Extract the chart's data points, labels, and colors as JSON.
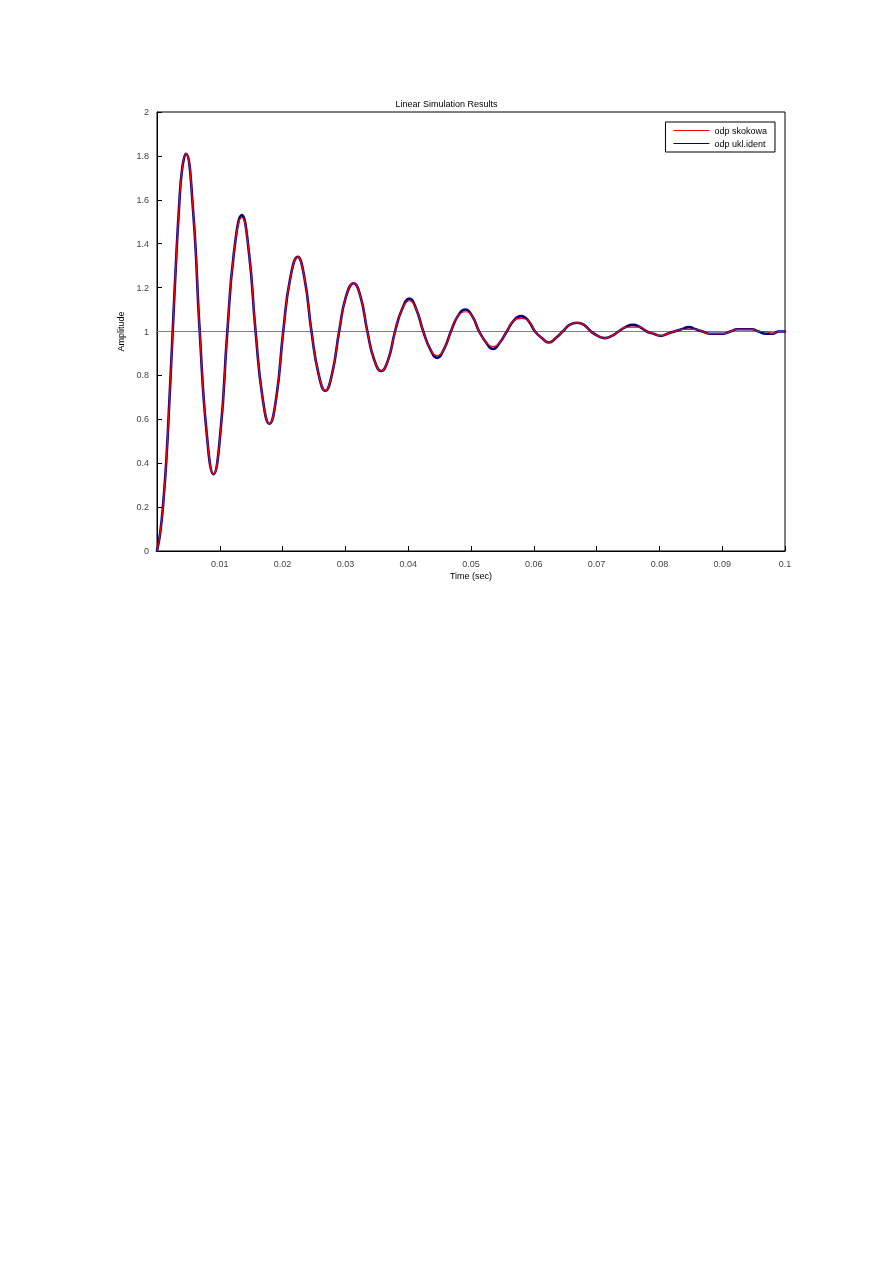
{
  "chart_data": {
    "type": "line",
    "title": "Linear Simulation Results",
    "xlabel": "Time (sec)",
    "ylabel": "Amplitude",
    "x": [
      0,
      0.0005,
      0.001,
      0.0015,
      0.002,
      0.0025,
      0.003,
      0.0035,
      0.004,
      0.0046,
      0.0057,
      0.0068,
      0.0079,
      0.009,
      0.0101,
      0.0112,
      0.0123,
      0.0135,
      0.0146,
      0.0157,
      0.0168,
      0.0179,
      0.019,
      0.0201,
      0.0212,
      0.0224,
      0.0235,
      0.0246,
      0.0257,
      0.0268,
      0.0279,
      0.029,
      0.0301,
      0.0313,
      0.0324,
      0.0335,
      0.0346,
      0.0357,
      0.0368,
      0.0379,
      0.039,
      0.0402,
      0.0413,
      0.0424,
      0.0435,
      0.0446,
      0.0457,
      0.0468,
      0.0479,
      0.0491,
      0.0502,
      0.0513,
      0.0524,
      0.0535,
      0.0546,
      0.0557,
      0.0568,
      0.058,
      0.0591,
      0.0602,
      0.0613,
      0.0624,
      0.0635,
      0.0646,
      0.0657,
      0.0669,
      0.068,
      0.0691,
      0.0702,
      0.0713,
      0.0724,
      0.0735,
      0.0746,
      0.0758,
      0.0769,
      0.078,
      0.0791,
      0.0802,
      0.0813,
      0.0824,
      0.0835,
      0.0847,
      0.0858,
      0.0869,
      0.088,
      0.0891,
      0.0902,
      0.0913,
      0.0924,
      0.0936,
      0.0947,
      0.0958,
      0.0969,
      0.098,
      0.099,
      0.1
    ],
    "series": [
      {
        "name": "odp skokowa",
        "color": "#ff0000",
        "values": [
          0,
          0.08,
          0.22,
          0.42,
          0.7,
          1.0,
          1.3,
          1.56,
          1.74,
          1.81,
          1.57,
          1.0,
          0.54,
          0.35,
          0.54,
          1.0,
          1.37,
          1.52,
          1.37,
          1.0,
          0.7,
          0.58,
          0.7,
          1.0,
          1.24,
          1.34,
          1.24,
          1.0,
          0.81,
          0.73,
          0.81,
          1.0,
          1.16,
          1.22,
          1.16,
          1.0,
          0.87,
          0.82,
          0.87,
          1.0,
          1.1,
          1.14,
          1.1,
          1.0,
          0.92,
          0.89,
          0.92,
          1.0,
          1.07,
          1.09,
          1.07,
          1.0,
          0.95,
          0.93,
          0.95,
          1.0,
          1.05,
          1.06,
          1.05,
          1.0,
          0.97,
          0.95,
          0.97,
          1.0,
          1.03,
          1.04,
          1.03,
          1.0,
          0.98,
          0.97,
          0.98,
          1.0,
          1.02,
          1.02,
          1.02,
          1.0,
          0.99,
          0.98,
          0.99,
          1.0,
          1.01,
          1.01,
          1.01,
          1.0,
          0.99,
          0.99,
          0.99,
          1.0,
          1.01,
          1.01,
          1.01,
          1.0,
          1.0,
          0.99,
          1.0,
          1.0
        ]
      },
      {
        "name": "odp ukl.ident",
        "color": "#00007f",
        "values": [
          0,
          0.08,
          0.22,
          0.42,
          0.7,
          1.0,
          1.3,
          1.56,
          1.74,
          1.81,
          1.57,
          1.0,
          0.54,
          0.35,
          0.54,
          1.0,
          1.37,
          1.53,
          1.37,
          1.0,
          0.7,
          0.58,
          0.7,
          1.0,
          1.24,
          1.34,
          1.24,
          1.0,
          0.81,
          0.73,
          0.81,
          1.0,
          1.16,
          1.22,
          1.16,
          1.0,
          0.87,
          0.82,
          0.87,
          1.0,
          1.1,
          1.15,
          1.1,
          1.0,
          0.92,
          0.88,
          0.92,
          1.0,
          1.07,
          1.1,
          1.07,
          1.0,
          0.95,
          0.92,
          0.95,
          1.0,
          1.05,
          1.07,
          1.05,
          1.0,
          0.97,
          0.95,
          0.97,
          1.0,
          1.03,
          1.04,
          1.03,
          1.0,
          0.98,
          0.97,
          0.98,
          1.0,
          1.02,
          1.03,
          1.02,
          1.0,
          0.99,
          0.98,
          0.99,
          1.0,
          1.01,
          1.02,
          1.01,
          1.0,
          0.99,
          0.99,
          0.99,
          1.0,
          1.01,
          1.01,
          1.01,
          1.0,
          0.99,
          0.99,
          1.0,
          1.0
        ]
      }
    ],
    "xlim": [
      0,
      0.1
    ],
    "xticks": [
      0.01,
      0.02,
      0.03,
      0.04,
      0.05,
      0.06,
      0.07,
      0.08,
      0.09,
      0.1
    ],
    "ylim": [
      0,
      2
    ],
    "yticks": [
      0,
      0.2,
      0.4,
      0.6,
      0.8,
      1,
      1.2,
      1.4,
      1.6,
      1.8,
      2
    ],
    "ref_lines": [
      {
        "axis": "y",
        "value": 1,
        "color": "#808080"
      }
    ],
    "legend": "top right",
    "grid": false,
    "marker": "none",
    "line_style": "solid"
  }
}
